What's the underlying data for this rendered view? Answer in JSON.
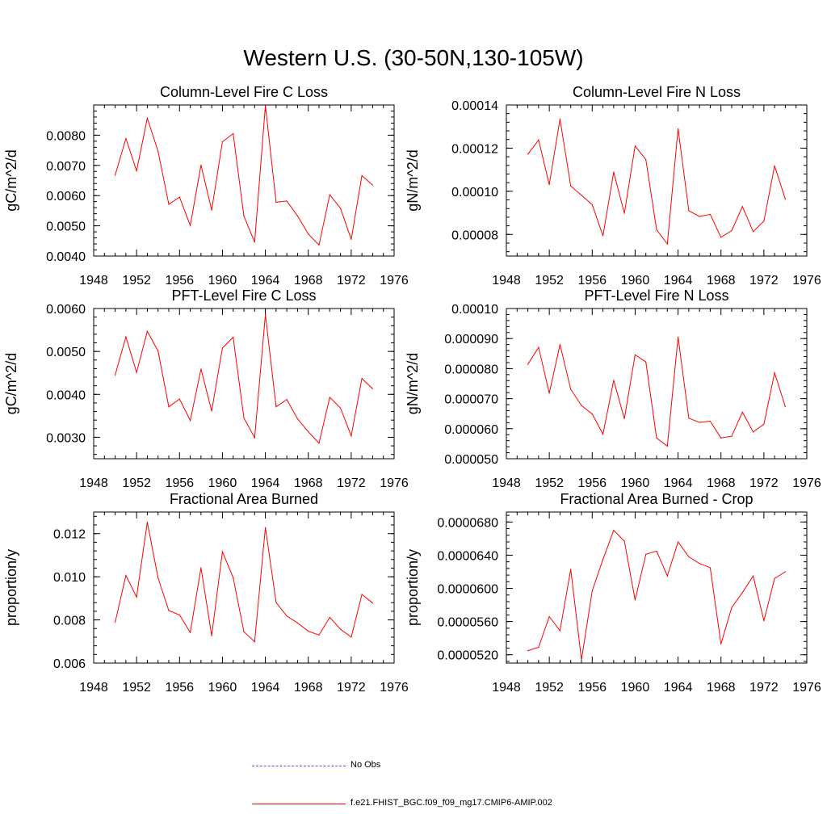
{
  "title": "Western U.S. (30-50N,130-105W)",
  "colors": {
    "model": "#ff0000",
    "obs": "#3333cc",
    "axis": "#000000"
  },
  "legend": {
    "obs_label": "No Obs",
    "model_label": "f.e21.FHIST_BGC.f09_f09_mg17.CMIP6-AMIP.002"
  },
  "chart_data": [
    {
      "type": "line",
      "title": "Column-Level Fire C Loss",
      "ylabel": "gC/m^2/d",
      "xlabel": "",
      "xlim": [
        1948,
        1976
      ],
      "x_ticks": [
        1948,
        1952,
        1956,
        1960,
        1964,
        1968,
        1972,
        1976
      ],
      "ylim": [
        0.004,
        0.009
      ],
      "y_ticks": [
        0.004,
        0.005,
        0.006,
        0.007,
        0.008
      ],
      "y_tick_labels": [
        "0.0040",
        "0.0050",
        "0.0060",
        "0.0070",
        "0.0080"
      ],
      "x": [
        1950,
        1951,
        1952,
        1953,
        1954,
        1955,
        1956,
        1957,
        1958,
        1959,
        1960,
        1961,
        1962,
        1963,
        1964,
        1965,
        1966,
        1967,
        1968,
        1969,
        1970,
        1971,
        1972,
        1973,
        1974
      ],
      "series": [
        {
          "name": "f.e21.FHIST_BGC.f09_f09_mg17.CMIP6-AMIP.002",
          "values": [
            0.00668,
            0.00789,
            0.00682,
            0.00856,
            0.00747,
            0.00571,
            0.00595,
            0.00501,
            0.00701,
            0.00552,
            0.00778,
            0.00805,
            0.00532,
            0.00446,
            0.00898,
            0.00578,
            0.00582,
            0.00533,
            0.00473,
            0.00436,
            0.00603,
            0.00558,
            0.00455,
            0.00666,
            0.00635
          ]
        }
      ]
    },
    {
      "type": "line",
      "title": "Column-Level Fire N Loss",
      "ylabel": "gN/m^2/d",
      "xlabel": "",
      "xlim": [
        1948,
        1976
      ],
      "x_ticks": [
        1948,
        1952,
        1956,
        1960,
        1964,
        1968,
        1972,
        1976
      ],
      "ylim": [
        7e-05,
        0.00014
      ],
      "y_ticks": [
        8e-05,
        0.0001,
        0.00012,
        0.00014
      ],
      "y_tick_labels": [
        "0.00008",
        "0.00010",
        "0.00012",
        "0.00014"
      ],
      "x": [
        1950,
        1951,
        1952,
        1953,
        1954,
        1955,
        1956,
        1957,
        1958,
        1959,
        1960,
        1961,
        1962,
        1963,
        1964,
        1965,
        1966,
        1967,
        1968,
        1969,
        1970,
        1971,
        1972,
        1973,
        1974
      ],
      "series": [
        {
          "name": "f.e21.FHIST_BGC.f09_f09_mg17.CMIP6-AMIP.002",
          "values": [
            0.0001172,
            0.0001238,
            0.0001031,
            0.0001335,
            0.0001024,
            9.82e-05,
            9.38e-05,
            7.94e-05,
            0.0001089,
            8.98e-05,
            0.000121,
            0.0001147,
            8.22e-05,
            7.56e-05,
            0.000129,
            9.1e-05,
            8.83e-05,
            8.93e-05,
            7.87e-05,
            8.18e-05,
            9.29e-05,
            8.13e-05,
            8.62e-05,
            0.0001118,
            9.63e-05
          ]
        }
      ]
    },
    {
      "type": "line",
      "title": "PFT-Level Fire C Loss",
      "ylabel": "gC/m^2/d",
      "xlabel": "",
      "xlim": [
        1948,
        1976
      ],
      "x_ticks": [
        1948,
        1952,
        1956,
        1960,
        1964,
        1968,
        1972,
        1976
      ],
      "ylim": [
        0.0025,
        0.006
      ],
      "y_ticks": [
        0.003,
        0.004,
        0.005,
        0.006
      ],
      "y_tick_labels": [
        "0.0030",
        "0.0040",
        "0.0050",
        "0.0060"
      ],
      "x": [
        1950,
        1951,
        1952,
        1953,
        1954,
        1955,
        1956,
        1957,
        1958,
        1959,
        1960,
        1961,
        1962,
        1963,
        1964,
        1965,
        1966,
        1967,
        1968,
        1969,
        1970,
        1971,
        1972,
        1973,
        1974
      ],
      "series": [
        {
          "name": "f.e21.FHIST_BGC.f09_f09_mg17.CMIP6-AMIP.002",
          "values": [
            0.00445,
            0.00534,
            0.00451,
            0.00547,
            0.00501,
            0.00371,
            0.00389,
            0.00339,
            0.00459,
            0.00361,
            0.00508,
            0.00533,
            0.00345,
            0.00299,
            0.00586,
            0.00371,
            0.00388,
            0.00343,
            0.00313,
            0.00286,
            0.00393,
            0.00368,
            0.00303,
            0.00437,
            0.00413
          ]
        }
      ]
    },
    {
      "type": "line",
      "title": "PFT-Level Fire N Loss",
      "ylabel": "gN/m^2/d",
      "xlabel": "",
      "xlim": [
        1948,
        1976
      ],
      "x_ticks": [
        1948,
        1952,
        1956,
        1960,
        1964,
        1968,
        1972,
        1976
      ],
      "ylim": [
        5e-05,
        0.0001
      ],
      "y_ticks": [
        5e-05,
        6e-05,
        7e-05,
        8e-05,
        9e-05,
        0.0001
      ],
      "y_tick_labels": [
        "0.000050",
        "0.000060",
        "0.000070",
        "0.000080",
        "0.000090",
        "0.00010"
      ],
      "x": [
        1950,
        1951,
        1952,
        1953,
        1954,
        1955,
        1956,
        1957,
        1958,
        1959,
        1960,
        1961,
        1962,
        1963,
        1964,
        1965,
        1966,
        1967,
        1968,
        1969,
        1970,
        1971,
        1972,
        1973,
        1974
      ],
      "series": [
        {
          "name": "f.e21.FHIST_BGC.f09_f09_mg17.CMIP6-AMIP.002",
          "values": [
            8.14e-05,
            8.71e-05,
            7.18e-05,
            8.8e-05,
            7.31e-05,
            6.77e-05,
            6.49e-05,
            5.82e-05,
            7.61e-05,
            6.33e-05,
            8.46e-05,
            8.22e-05,
            5.69e-05,
            5.42e-05,
            9.05e-05,
            6.35e-05,
            6.21e-05,
            6.25e-05,
            5.69e-05,
            5.75e-05,
            6.55e-05,
            5.89e-05,
            6.15e-05,
            7.86e-05,
            6.73e-05
          ]
        }
      ]
    },
    {
      "type": "line",
      "title": "Fractional Area Burned",
      "ylabel": "proportion/y",
      "xlabel": "",
      "xlim": [
        1948,
        1976
      ],
      "x_ticks": [
        1948,
        1952,
        1956,
        1960,
        1964,
        1968,
        1972,
        1976
      ],
      "ylim": [
        0.006,
        0.013
      ],
      "y_ticks": [
        0.006,
        0.008,
        0.01,
        0.012
      ],
      "y_tick_labels": [
        "0.006",
        "0.008",
        "0.010",
        "0.012"
      ],
      "x": [
        1950,
        1951,
        1952,
        1953,
        1954,
        1955,
        1956,
        1957,
        1958,
        1959,
        1960,
        1961,
        1962,
        1963,
        1964,
        1965,
        1966,
        1967,
        1968,
        1969,
        1970,
        1971,
        1972,
        1973,
        1974
      ],
      "series": [
        {
          "name": "f.e21.FHIST_BGC.f09_f09_mg17.CMIP6-AMIP.002",
          "values": [
            0.00789,
            0.01006,
            0.00906,
            0.01253,
            0.00995,
            0.00843,
            0.00823,
            0.00742,
            0.01042,
            0.00726,
            0.01116,
            0.00996,
            0.00745,
            0.00699,
            0.01228,
            0.00881,
            0.00818,
            0.00786,
            0.00748,
            0.0073,
            0.00812,
            0.00757,
            0.0072,
            0.00918,
            0.00878
          ]
        }
      ]
    },
    {
      "type": "line",
      "title": "Fractional Area Burned - Crop",
      "ylabel": "proportion/y",
      "xlabel": "",
      "xlim": [
        1948,
        1976
      ],
      "x_ticks": [
        1948,
        1952,
        1956,
        1960,
        1964,
        1968,
        1972,
        1976
      ],
      "ylim": [
        5.1e-05,
        6.92e-05
      ],
      "y_ticks": [
        5.2e-05,
        5.6e-05,
        6e-05,
        6.4e-05,
        6.8e-05
      ],
      "y_tick_labels": [
        "0.0000520",
        "0.0000560",
        "0.0000600",
        "0.0000640",
        "0.0000680"
      ],
      "x": [
        1950,
        1951,
        1952,
        1953,
        1954,
        1955,
        1956,
        1957,
        1958,
        1959,
        1960,
        1961,
        1962,
        1963,
        1964,
        1965,
        1966,
        1967,
        1968,
        1969,
        1970,
        1971,
        1972,
        1973,
        1974
      ],
      "series": [
        {
          "name": "f.e21.FHIST_BGC.f09_f09_mg17.CMIP6-AMIP.002",
          "values": [
            5.25e-05,
            5.29e-05,
            5.66e-05,
            5.49e-05,
            6.23e-05,
            5.14e-05,
            5.97e-05,
            6.35e-05,
            6.7e-05,
            6.57e-05,
            5.86e-05,
            6.41e-05,
            6.45e-05,
            6.15e-05,
            6.56e-05,
            6.38e-05,
            6.3e-05,
            6.25e-05,
            5.33e-05,
            5.77e-05,
            5.95e-05,
            6.15e-05,
            5.61e-05,
            6.12e-05,
            6.2e-05
          ]
        }
      ]
    }
  ]
}
